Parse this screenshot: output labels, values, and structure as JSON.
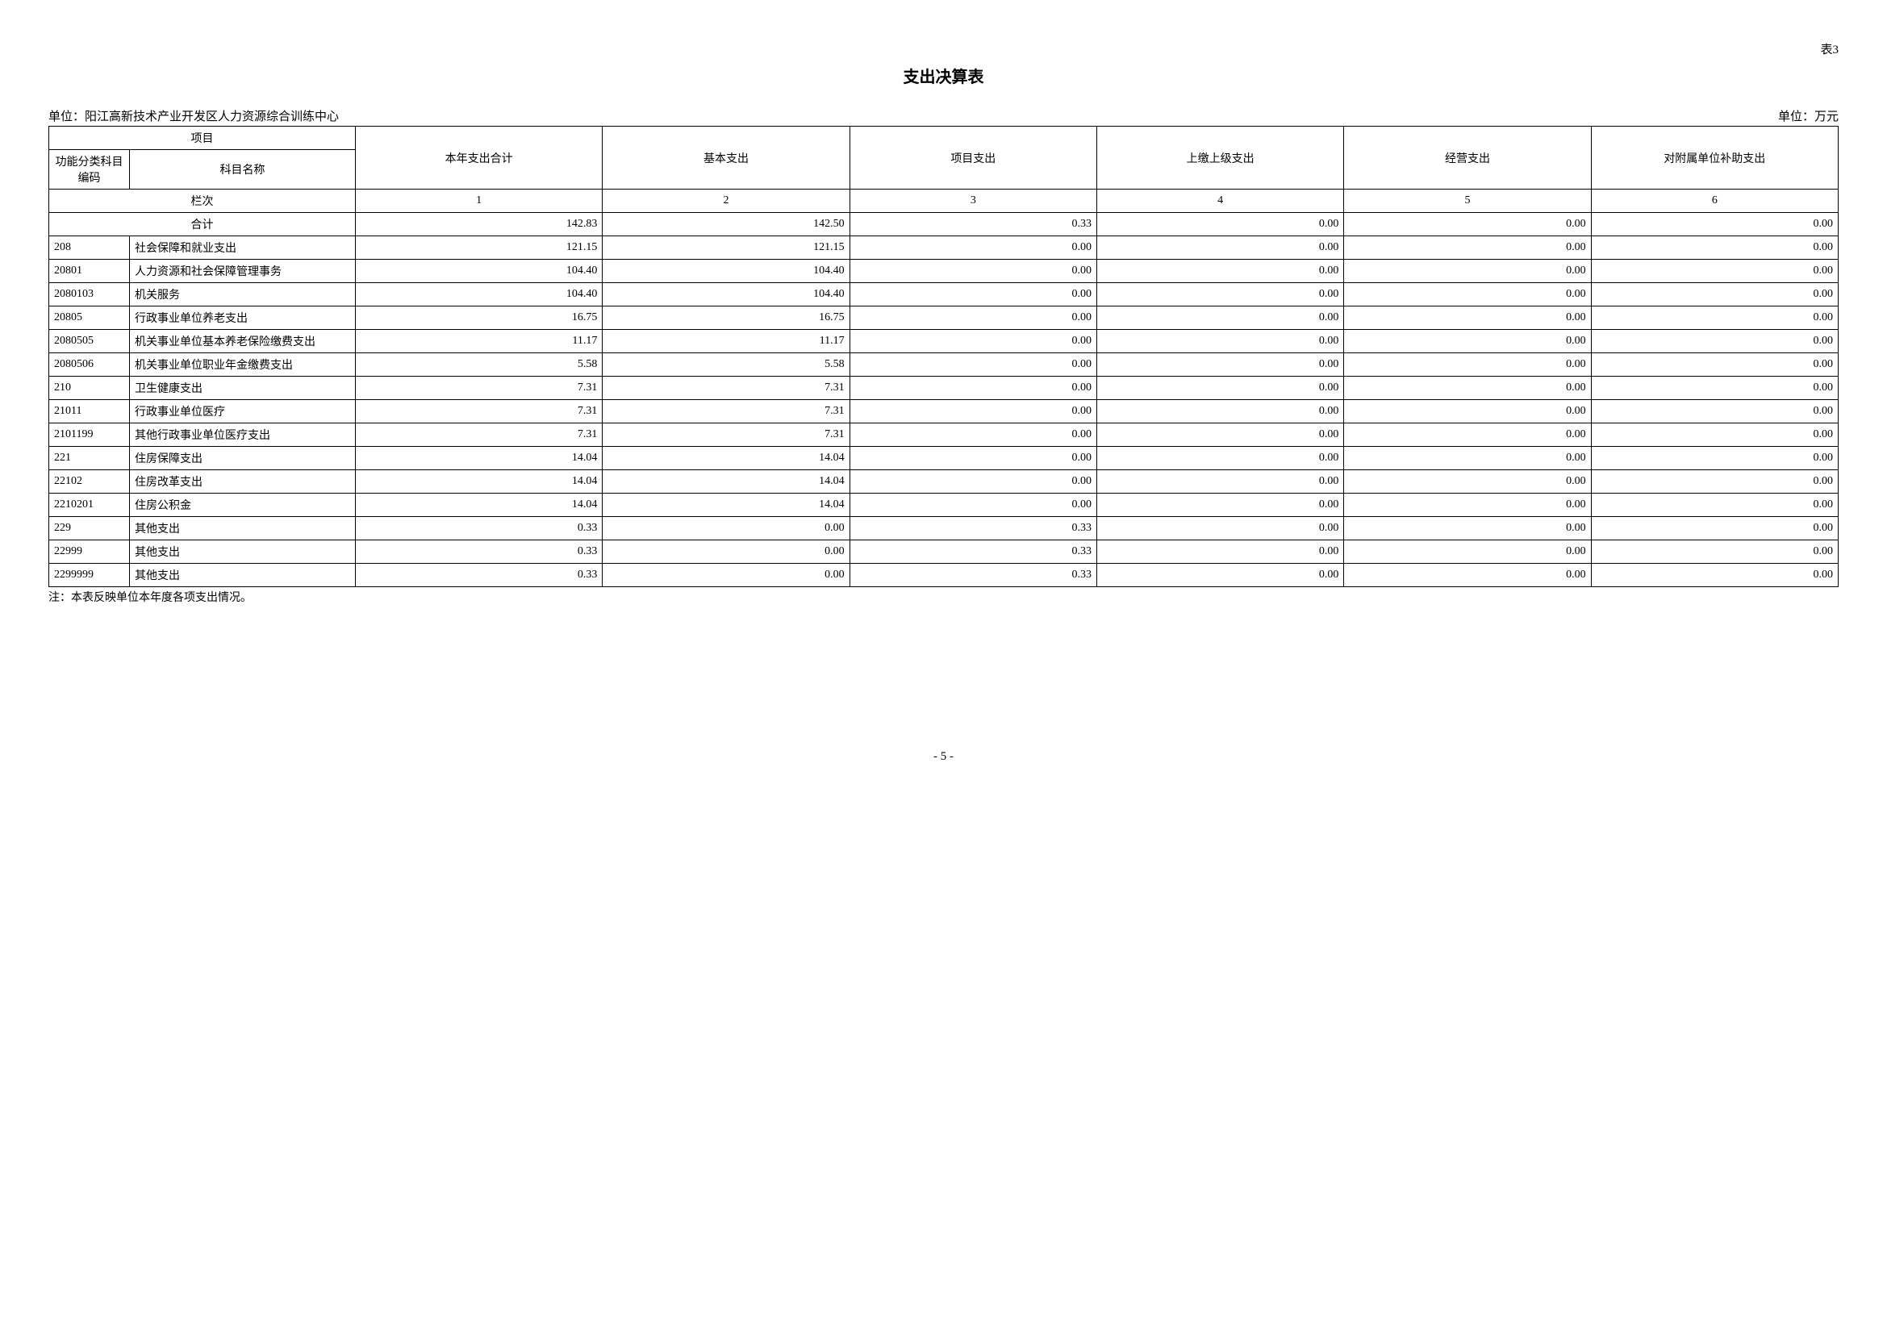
{
  "table_label": "表3",
  "title": "支出决算表",
  "unit_left": "单位：阳江高新技术产业开发区人力资源综合训练中心",
  "unit_right": "单位：万元",
  "headers": {
    "project": "项目",
    "code": "功能分类科目编码",
    "name": "科目名称",
    "cols": [
      "本年支出合计",
      "基本支出",
      "项目支出",
      "上缴上级支出",
      "经营支出",
      "对附属单位补助支出"
    ]
  },
  "col_index_label": "栏次",
  "col_indices": [
    "1",
    "2",
    "3",
    "4",
    "5",
    "6"
  ],
  "total_label": "合计",
  "rows": [
    {
      "code": "",
      "name": "合计",
      "vals": [
        "142.83",
        "142.50",
        "0.33",
        "0.00",
        "0.00",
        "0.00"
      ]
    },
    {
      "code": "208",
      "name": "社会保障和就业支出",
      "vals": [
        "121.15",
        "121.15",
        "0.00",
        "0.00",
        "0.00",
        "0.00"
      ]
    },
    {
      "code": "20801",
      "name": "人力资源和社会保障管理事务",
      "vals": [
        "104.40",
        "104.40",
        "0.00",
        "0.00",
        "0.00",
        "0.00"
      ]
    },
    {
      "code": "2080103",
      "name": "机关服务",
      "vals": [
        "104.40",
        "104.40",
        "0.00",
        "0.00",
        "0.00",
        "0.00"
      ]
    },
    {
      "code": "20805",
      "name": "行政事业单位养老支出",
      "vals": [
        "16.75",
        "16.75",
        "0.00",
        "0.00",
        "0.00",
        "0.00"
      ]
    },
    {
      "code": "2080505",
      "name": "机关事业单位基本养老保险缴费支出",
      "vals": [
        "11.17",
        "11.17",
        "0.00",
        "0.00",
        "0.00",
        "0.00"
      ]
    },
    {
      "code": "2080506",
      "name": "机关事业单位职业年金缴费支出",
      "vals": [
        "5.58",
        "5.58",
        "0.00",
        "0.00",
        "0.00",
        "0.00"
      ]
    },
    {
      "code": "210",
      "name": "卫生健康支出",
      "vals": [
        "7.31",
        "7.31",
        "0.00",
        "0.00",
        "0.00",
        "0.00"
      ]
    },
    {
      "code": "21011",
      "name": "行政事业单位医疗",
      "vals": [
        "7.31",
        "7.31",
        "0.00",
        "0.00",
        "0.00",
        "0.00"
      ]
    },
    {
      "code": "2101199",
      "name": "其他行政事业单位医疗支出",
      "vals": [
        "7.31",
        "7.31",
        "0.00",
        "0.00",
        "0.00",
        "0.00"
      ]
    },
    {
      "code": "221",
      "name": "住房保障支出",
      "vals": [
        "14.04",
        "14.04",
        "0.00",
        "0.00",
        "0.00",
        "0.00"
      ]
    },
    {
      "code": "22102",
      "name": "住房改革支出",
      "vals": [
        "14.04",
        "14.04",
        "0.00",
        "0.00",
        "0.00",
        "0.00"
      ]
    },
    {
      "code": "2210201",
      "name": "住房公积金",
      "vals": [
        "14.04",
        "14.04",
        "0.00",
        "0.00",
        "0.00",
        "0.00"
      ]
    },
    {
      "code": "229",
      "name": "其他支出",
      "vals": [
        "0.33",
        "0.00",
        "0.33",
        "0.00",
        "0.00",
        "0.00"
      ]
    },
    {
      "code": "22999",
      "name": "其他支出",
      "vals": [
        "0.33",
        "0.00",
        "0.33",
        "0.00",
        "0.00",
        "0.00"
      ]
    },
    {
      "code": "2299999",
      "name": "其他支出",
      "vals": [
        "0.33",
        "0.00",
        "0.33",
        "0.00",
        "0.00",
        "0.00"
      ]
    }
  ],
  "footnote": "注：本表反映单位本年度各项支出情况。",
  "page_number": "- 5 -"
}
